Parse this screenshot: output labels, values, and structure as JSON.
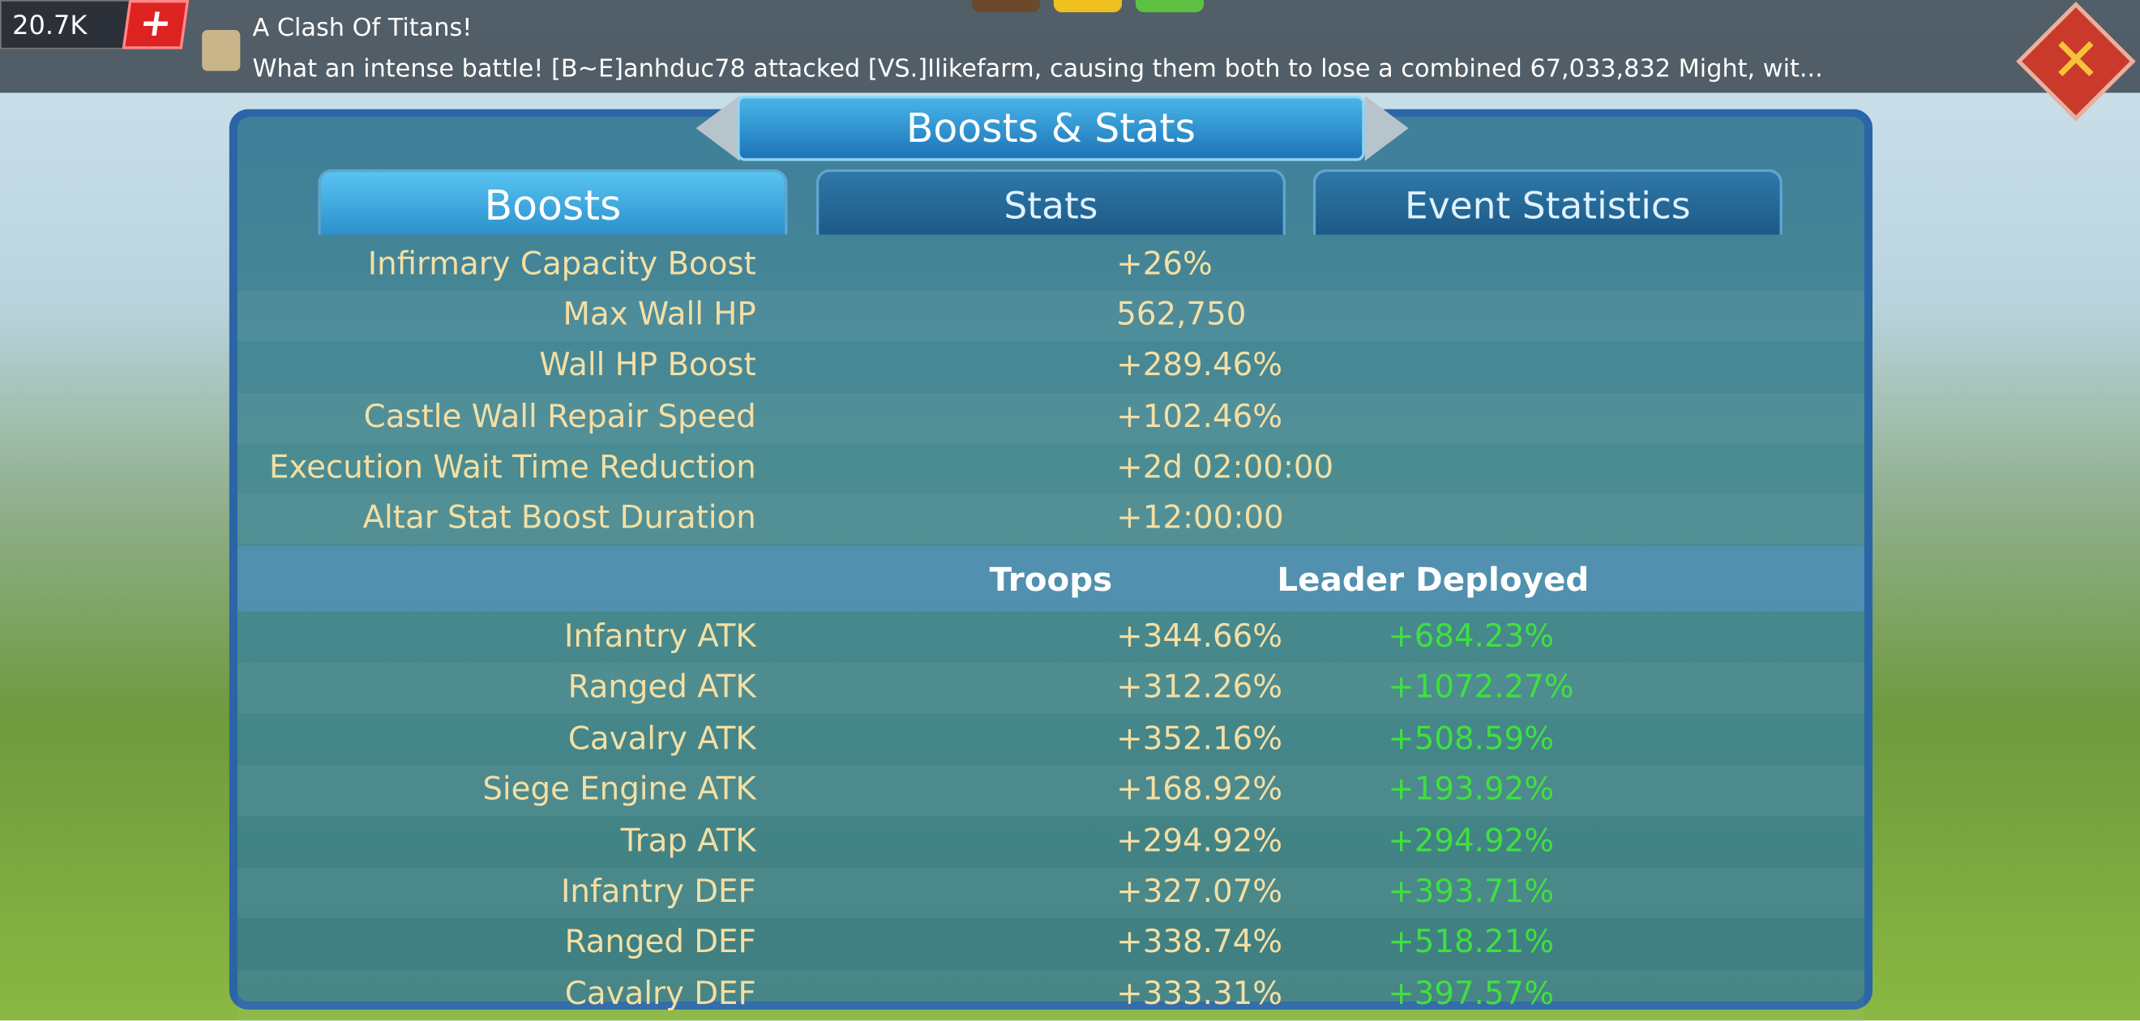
{
  "top_bar": {
    "resource": "20.7K",
    "news_title": "A Clash Of Titans!",
    "news_message": "What an intense battle!  [B~E]anhduc78 attacked [VS.]Ilikefarm, causing them both to lose a combined 67,033,832 Might, wit..."
  },
  "header": {
    "title": "Boosts & Stats"
  },
  "tabs": [
    "Boosts",
    "Stats",
    "Event Statistics"
  ],
  "general_rows": [
    {
      "label": "Infirmary Capacity Boost",
      "value": "+26%"
    },
    {
      "label": "Max Wall HP",
      "value": "562,750"
    },
    {
      "label": "Wall HP Boost",
      "value": "+289.46%"
    },
    {
      "label": "Castle Wall Repair Speed",
      "value": "+102.46%"
    },
    {
      "label": "Execution Wait Time Reduction",
      "value": "+2d 02:00:00"
    },
    {
      "label": "Altar Stat Boost Duration",
      "value": "+12:00:00"
    }
  ],
  "troop_header": {
    "troops": "Troops",
    "leader": "Leader Deployed"
  },
  "troop_rows": [
    {
      "label": "Infantry ATK",
      "troops": "+344.66%",
      "leader": "+684.23%"
    },
    {
      "label": "Ranged ATK",
      "troops": "+312.26%",
      "leader": "+1072.27%"
    },
    {
      "label": "Cavalry ATK",
      "troops": "+352.16%",
      "leader": "+508.59%"
    },
    {
      "label": "Siege Engine ATK",
      "troops": "+168.92%",
      "leader": "+193.92%"
    },
    {
      "label": "Trap ATK",
      "troops": "+294.92%",
      "leader": "+294.92%"
    },
    {
      "label": "Infantry DEF",
      "troops": "+327.07%",
      "leader": "+393.71%"
    },
    {
      "label": "Ranged DEF",
      "troops": "+338.74%",
      "leader": "+518.21%"
    },
    {
      "label": "Cavalry DEF",
      "troops": "+333.31%",
      "leader": "+397.57%"
    }
  ]
}
